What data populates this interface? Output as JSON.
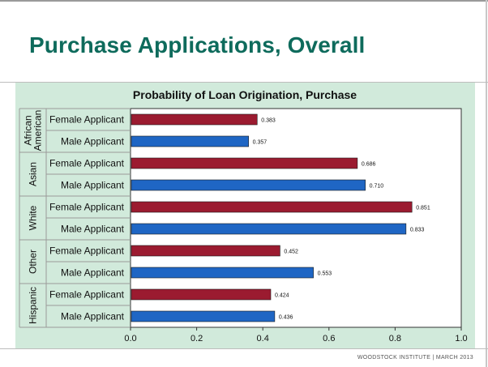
{
  "slide": {
    "title": "Purchase Applications, Overall",
    "footer": "WOODSTOCK INSTITUTE |  MARCH 2013"
  },
  "colors": {
    "female": "#9b1b30",
    "male": "#1f66c4",
    "title": "#0e6b5c",
    "panel": "#d1eadb"
  },
  "chart_data": {
    "type": "bar",
    "orientation": "horizontal",
    "title": "Probability of Loan Origination, Purchase",
    "xlim": [
      0,
      1.0
    ],
    "x_ticks": [
      "0.0",
      "0.2",
      "0.4",
      "0.6",
      "0.8",
      "1.0"
    ],
    "grid": false,
    "groups": [
      {
        "name": [
          "African",
          "American"
        ],
        "bars": [
          {
            "label": "Female Applicant",
            "value": 0.383,
            "value_label": "0.383",
            "series": "female"
          },
          {
            "label": "Male Applicant",
            "value": 0.357,
            "value_label": "0.357",
            "series": "male"
          }
        ]
      },
      {
        "name": [
          "Asian"
        ],
        "bars": [
          {
            "label": "Female Applicant",
            "value": 0.686,
            "value_label": "0.686",
            "series": "female"
          },
          {
            "label": "Male Applicant",
            "value": 0.71,
            "value_label": "0.710",
            "series": "male"
          }
        ]
      },
      {
        "name": [
          "White"
        ],
        "bars": [
          {
            "label": "Female Applicant",
            "value": 0.851,
            "value_label": "0.851",
            "series": "female"
          },
          {
            "label": "Male Applicant",
            "value": 0.833,
            "value_label": "0.833",
            "series": "male"
          }
        ]
      },
      {
        "name": [
          "Other"
        ],
        "bars": [
          {
            "label": "Female Applicant",
            "value": 0.452,
            "value_label": "0.452",
            "series": "female"
          },
          {
            "label": "Male Applicant",
            "value": 0.553,
            "value_label": "0.553",
            "series": "male"
          }
        ]
      },
      {
        "name": [
          "Hispanic"
        ],
        "bars": [
          {
            "label": "Female Applicant",
            "value": 0.424,
            "value_label": "0.424",
            "series": "female"
          },
          {
            "label": "Male Applicant",
            "value": 0.436,
            "value_label": "0.436",
            "series": "male"
          }
        ]
      }
    ]
  }
}
